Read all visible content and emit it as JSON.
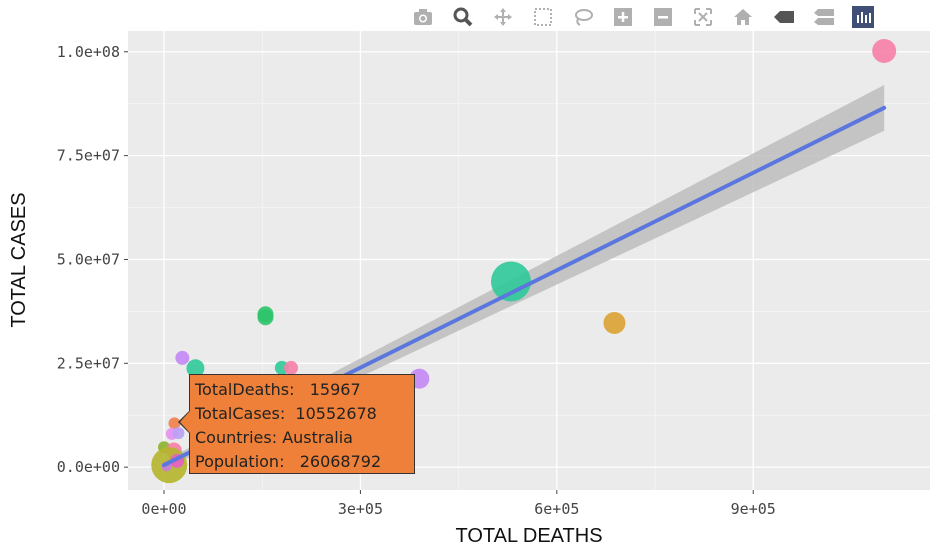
{
  "chart_data": {
    "type": "scatter",
    "xlabel": "TOTAL DEATHS",
    "ylabel": "TOTAL CASES",
    "x_ticks": [
      0,
      300000,
      600000,
      900000
    ],
    "x_tick_labels": [
      "0e+00",
      "3e+05",
      "6e+05",
      "9e+05"
    ],
    "y_ticks": [
      0,
      25000000,
      50000000,
      75000000,
      100000000
    ],
    "y_tick_labels": [
      "0.0e+00",
      "2.5e+07",
      "5.0e+07",
      "7.5e+07",
      "1.0e+08"
    ],
    "xlim": [
      -55000,
      1170000
    ],
    "ylim": [
      -5500000,
      105000000
    ],
    "grid": true,
    "points": [
      {
        "x": 1100000,
        "y": 100200000,
        "color": "#f77fa7",
        "size": 12
      },
      {
        "x": 530000,
        "y": 44700000,
        "color": "#30c99a",
        "size": 20
      },
      {
        "x": 688000,
        "y": 34700000,
        "color": "#dba232",
        "size": 11
      },
      {
        "x": 155000,
        "y": 36800000,
        "color": "#2ec46c",
        "size": 8
      },
      {
        "x": 155000,
        "y": 36100000,
        "color": "#2ec46c",
        "size": 8
      },
      {
        "x": 390000,
        "y": 21300000,
        "color": "#c488f5",
        "size": 10
      },
      {
        "x": 28000,
        "y": 26300000,
        "color": "#c488f5",
        "size": 7
      },
      {
        "x": 48000,
        "y": 23800000,
        "color": "#30c99a",
        "size": 9
      },
      {
        "x": 180000,
        "y": 23900000,
        "color": "#30c99a",
        "size": 7
      },
      {
        "x": 194000,
        "y": 23900000,
        "color": "#f77fa7",
        "size": 7
      },
      {
        "x": 15967,
        "y": 10552678,
        "color": "#f0814a",
        "size": 6
      },
      {
        "x": 12000,
        "y": 8000000,
        "color": "#e68ef0",
        "size": 6
      },
      {
        "x": 22000,
        "y": 8200000,
        "color": "#b8a0f5",
        "size": 6
      },
      {
        "x": 0,
        "y": 4800000,
        "color": "#8bb32b",
        "size": 6
      },
      {
        "x": 15000,
        "y": 4000000,
        "color": "#f77fa7",
        "size": 8
      },
      {
        "x": 8000,
        "y": 500000,
        "color": "#b5b52b",
        "size": 18
      },
      {
        "x": 20000,
        "y": 1500000,
        "color": "#e85ec8",
        "size": 7
      },
      {
        "x": 4000,
        "y": 200000,
        "color": "#c87be0",
        "size": 5
      }
    ],
    "regression": {
      "color": "#5b77de",
      "band_color": "#bdbdbd",
      "x_start": 0,
      "x_end": 1100000,
      "y_start": 500000,
      "y_end": 86500000,
      "band_start": 1000000,
      "band_end": 5500000
    }
  },
  "tooltip": {
    "rows": [
      "TotalDeaths:   15967",
      "TotalCases:  10552678",
      "Countries: Australia",
      "Population:   26068792"
    ]
  },
  "modebar": {
    "icons": [
      "camera-icon",
      "zoom-icon",
      "pan-icon",
      "box-select-icon",
      "lasso-icon",
      "zoom-in-icon",
      "zoom-out-icon",
      "autoscale-icon",
      "reset-axes-icon",
      "spike-lines-icon",
      "compare-hover-icon",
      "plotly-logo-icon"
    ]
  }
}
